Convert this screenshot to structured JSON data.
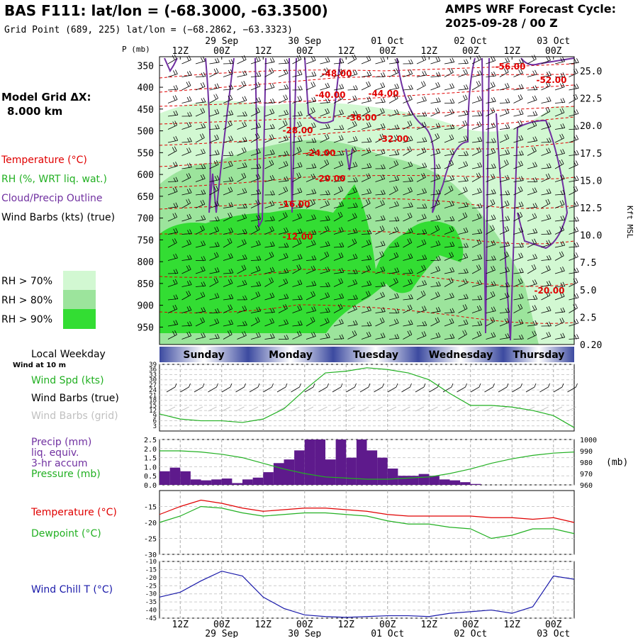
{
  "header": {
    "title": "BAS F111:  lat/lon = (-68.3000, -63.3500)",
    "grid_point": "Grid Point (689, 225) lat/lon = (−68.2862, −63.3323)",
    "forecast_line1": "AMPS WRF Forecast Cycle:",
    "forecast_line2": "2025-09-28 / 00  Z"
  },
  "sidebar": {
    "model_grid_line1": "Model Grid ΔX:",
    "model_grid_line2": "8.000 km",
    "legend": [
      {
        "label": "Temperature (°C)",
        "color": "#e00000"
      },
      {
        "label": "RH (%, WRT liq. wat.)",
        "color": "#22b022"
      },
      {
        "label": "Cloud/Precip Outline",
        "color": "#7030a0"
      },
      {
        "label": "Wind Barbs (kts) (true)",
        "color": "#000000"
      }
    ],
    "rh_boxes": [
      {
        "label": "RH > 70%",
        "color": "#d2f8d2"
      },
      {
        "label": "RH > 80%",
        "color": "#9ce49c"
      },
      {
        "label": "RH > 90%",
        "color": "#33dd33"
      }
    ],
    "local_weekday": "Local Weekday",
    "wind_at": "Wind at 10 m"
  },
  "colors": {
    "temp": "#e00000",
    "green": "#22b022",
    "purple": "#7030a0",
    "precip": "#5e1a8c",
    "blue": "#1a1aaa",
    "grey_label": "#c0c0c0"
  },
  "chart_data": [
    {
      "type": "heatmap",
      "name": "profile",
      "y_axis_label": "P (mb)",
      "right_axis_label": "Kft MSL",
      "pressure_ticks": [
        350,
        400,
        450,
        500,
        550,
        600,
        650,
        700,
        750,
        800,
        850,
        900,
        950
      ],
      "height_ticks": [
        "25.0",
        "22.5",
        "20.0",
        "17.5",
        "15.0",
        "12.5",
        "10.0",
        "7.5",
        "5.0",
        "2.5",
        "0.20"
      ],
      "top_time_labels": [
        "12Z",
        "00Z",
        "12Z",
        "00Z",
        "12Z",
        "00Z",
        "12Z",
        "00Z",
        "12Z",
        "00Z"
      ],
      "top_date_labels": [
        "29 Sep",
        "30 Sep",
        "01 Oct",
        "02 Oct",
        "03 Oct"
      ],
      "temperature_labels": [
        "-48.00",
        "-56.00",
        "-52.00",
        "-40.00",
        "-44.00",
        "-36.00",
        "-28.00",
        "-32.00",
        "-24.00",
        "-20.00",
        "-16.00",
        "-12.00",
        "-20.00"
      ]
    },
    {
      "type": "table",
      "name": "weekday_bar",
      "days": [
        "Sunday",
        "Monday",
        "Tuesday",
        "Wednesday",
        "Thursday"
      ]
    },
    {
      "type": "line",
      "name": "wind",
      "series_labels": [
        "Wind Spd (kts)",
        "Wind Barbs (true)",
        "Wind Barbs (grid)"
      ],
      "y_ticks": [
        3,
        6,
        9,
        12,
        15,
        18,
        21,
        24,
        27,
        30,
        33,
        36,
        39
      ],
      "ylim": [
        0,
        39
      ],
      "x_hours": [
        0,
        6,
        12,
        18,
        24,
        30,
        36,
        42,
        48,
        54,
        60,
        66,
        72,
        78,
        84,
        90,
        96,
        102,
        108,
        114,
        120
      ],
      "values": [
        10,
        7,
        6,
        6,
        5,
        7,
        13,
        24,
        34,
        35,
        37,
        36,
        34,
        30,
        22,
        15,
        15,
        14,
        12,
        9,
        2
      ]
    },
    {
      "type": "bar",
      "name": "precip_pressure",
      "series_labels": [
        "Precip (mm)",
        "liq. equiv.",
        "3-hr accum",
        "Pressure (mb)"
      ],
      "left_ticks": [
        "2.5",
        "2.0",
        "1.5",
        "1.0",
        "0.5",
        "0.0"
      ],
      "right_ticks": [
        "1000",
        "990",
        "980",
        "970",
        "960"
      ],
      "right_unit": "(mb)",
      "ylim": [
        0,
        2.5
      ],
      "pressure_lim": [
        960,
        1000
      ],
      "precip_mm": [
        0.75,
        0.95,
        0.75,
        0.3,
        0.25,
        0.3,
        0.35,
        0.1,
        0.3,
        0.4,
        0.7,
        1.2,
        1.4,
        1.9,
        2.5,
        2.5,
        1.4,
        2.5,
        1.5,
        2.5,
        1.9,
        1.5,
        0.9,
        0.5,
        0.5,
        0.6,
        0.5,
        0.3,
        0.25,
        0.15,
        0.05,
        0,
        0,
        0,
        0,
        0,
        0,
        0,
        0,
        0
      ],
      "pressure_hours": [
        0,
        6,
        12,
        18,
        24,
        30,
        36,
        42,
        48,
        54,
        60,
        66,
        72,
        78,
        84,
        90,
        96,
        102,
        108,
        114,
        120
      ],
      "pressure_mb": [
        990,
        990,
        989,
        987,
        984,
        979,
        974,
        970,
        967,
        966,
        965,
        965,
        966,
        967,
        970,
        974,
        979,
        983,
        986,
        988,
        989
      ]
    },
    {
      "type": "line",
      "name": "temp_dew",
      "series_labels": [
        "Temperature (°C)",
        "Dewpoint (°C)"
      ],
      "y_ticks": [
        -15,
        -20,
        -25,
        -30
      ],
      "ylim": [
        -30,
        -10
      ],
      "x_hours": [
        0,
        6,
        12,
        18,
        24,
        30,
        36,
        42,
        48,
        54,
        60,
        66,
        72,
        78,
        84,
        90,
        96,
        102,
        108,
        114,
        120
      ],
      "temperature": [
        -17.5,
        -15,
        -13,
        -14,
        -15.5,
        -16.5,
        -16,
        -15.5,
        -15.5,
        -16,
        -16.5,
        -17.5,
        -18,
        -18,
        -18,
        -18,
        -18.5,
        -18.5,
        -19,
        -18.5,
        -20
      ],
      "dewpoint": [
        -20,
        -18,
        -15,
        -15.5,
        -17,
        -18,
        -17.5,
        -17,
        -17,
        -17.5,
        -18,
        -19.5,
        -20.5,
        -20.5,
        -21.5,
        -22,
        -25,
        -24,
        -22,
        -22,
        -23.5
      ]
    },
    {
      "type": "line",
      "name": "wind_chill",
      "series_labels": [
        "Wind Chill T (°C)"
      ],
      "y_ticks": [
        -10,
        -15,
        -20,
        -25,
        -30,
        -35,
        -40,
        -45
      ],
      "ylim": [
        -45,
        -10
      ],
      "x_hours": [
        0,
        6,
        12,
        18,
        24,
        30,
        36,
        42,
        48,
        54,
        60,
        66,
        72,
        78,
        84,
        90,
        96,
        102,
        108,
        114,
        120
      ],
      "values": [
        -32,
        -29,
        -22,
        -16,
        -19,
        -32,
        -39,
        -43,
        -44,
        -44.5,
        -44,
        -43.5,
        -43.5,
        -44,
        -42,
        -41,
        -40,
        -42,
        -38,
        -19,
        -21
      ],
      "bottom_time_labels": [
        "12Z",
        "00Z",
        "12Z",
        "00Z",
        "12Z",
        "00Z",
        "12Z",
        "00Z",
        "12Z",
        "00Z"
      ],
      "bottom_date_labels": [
        "29 Sep",
        "30 Sep",
        "01 Oct",
        "02 Oct",
        "03 Oct"
      ]
    }
  ]
}
